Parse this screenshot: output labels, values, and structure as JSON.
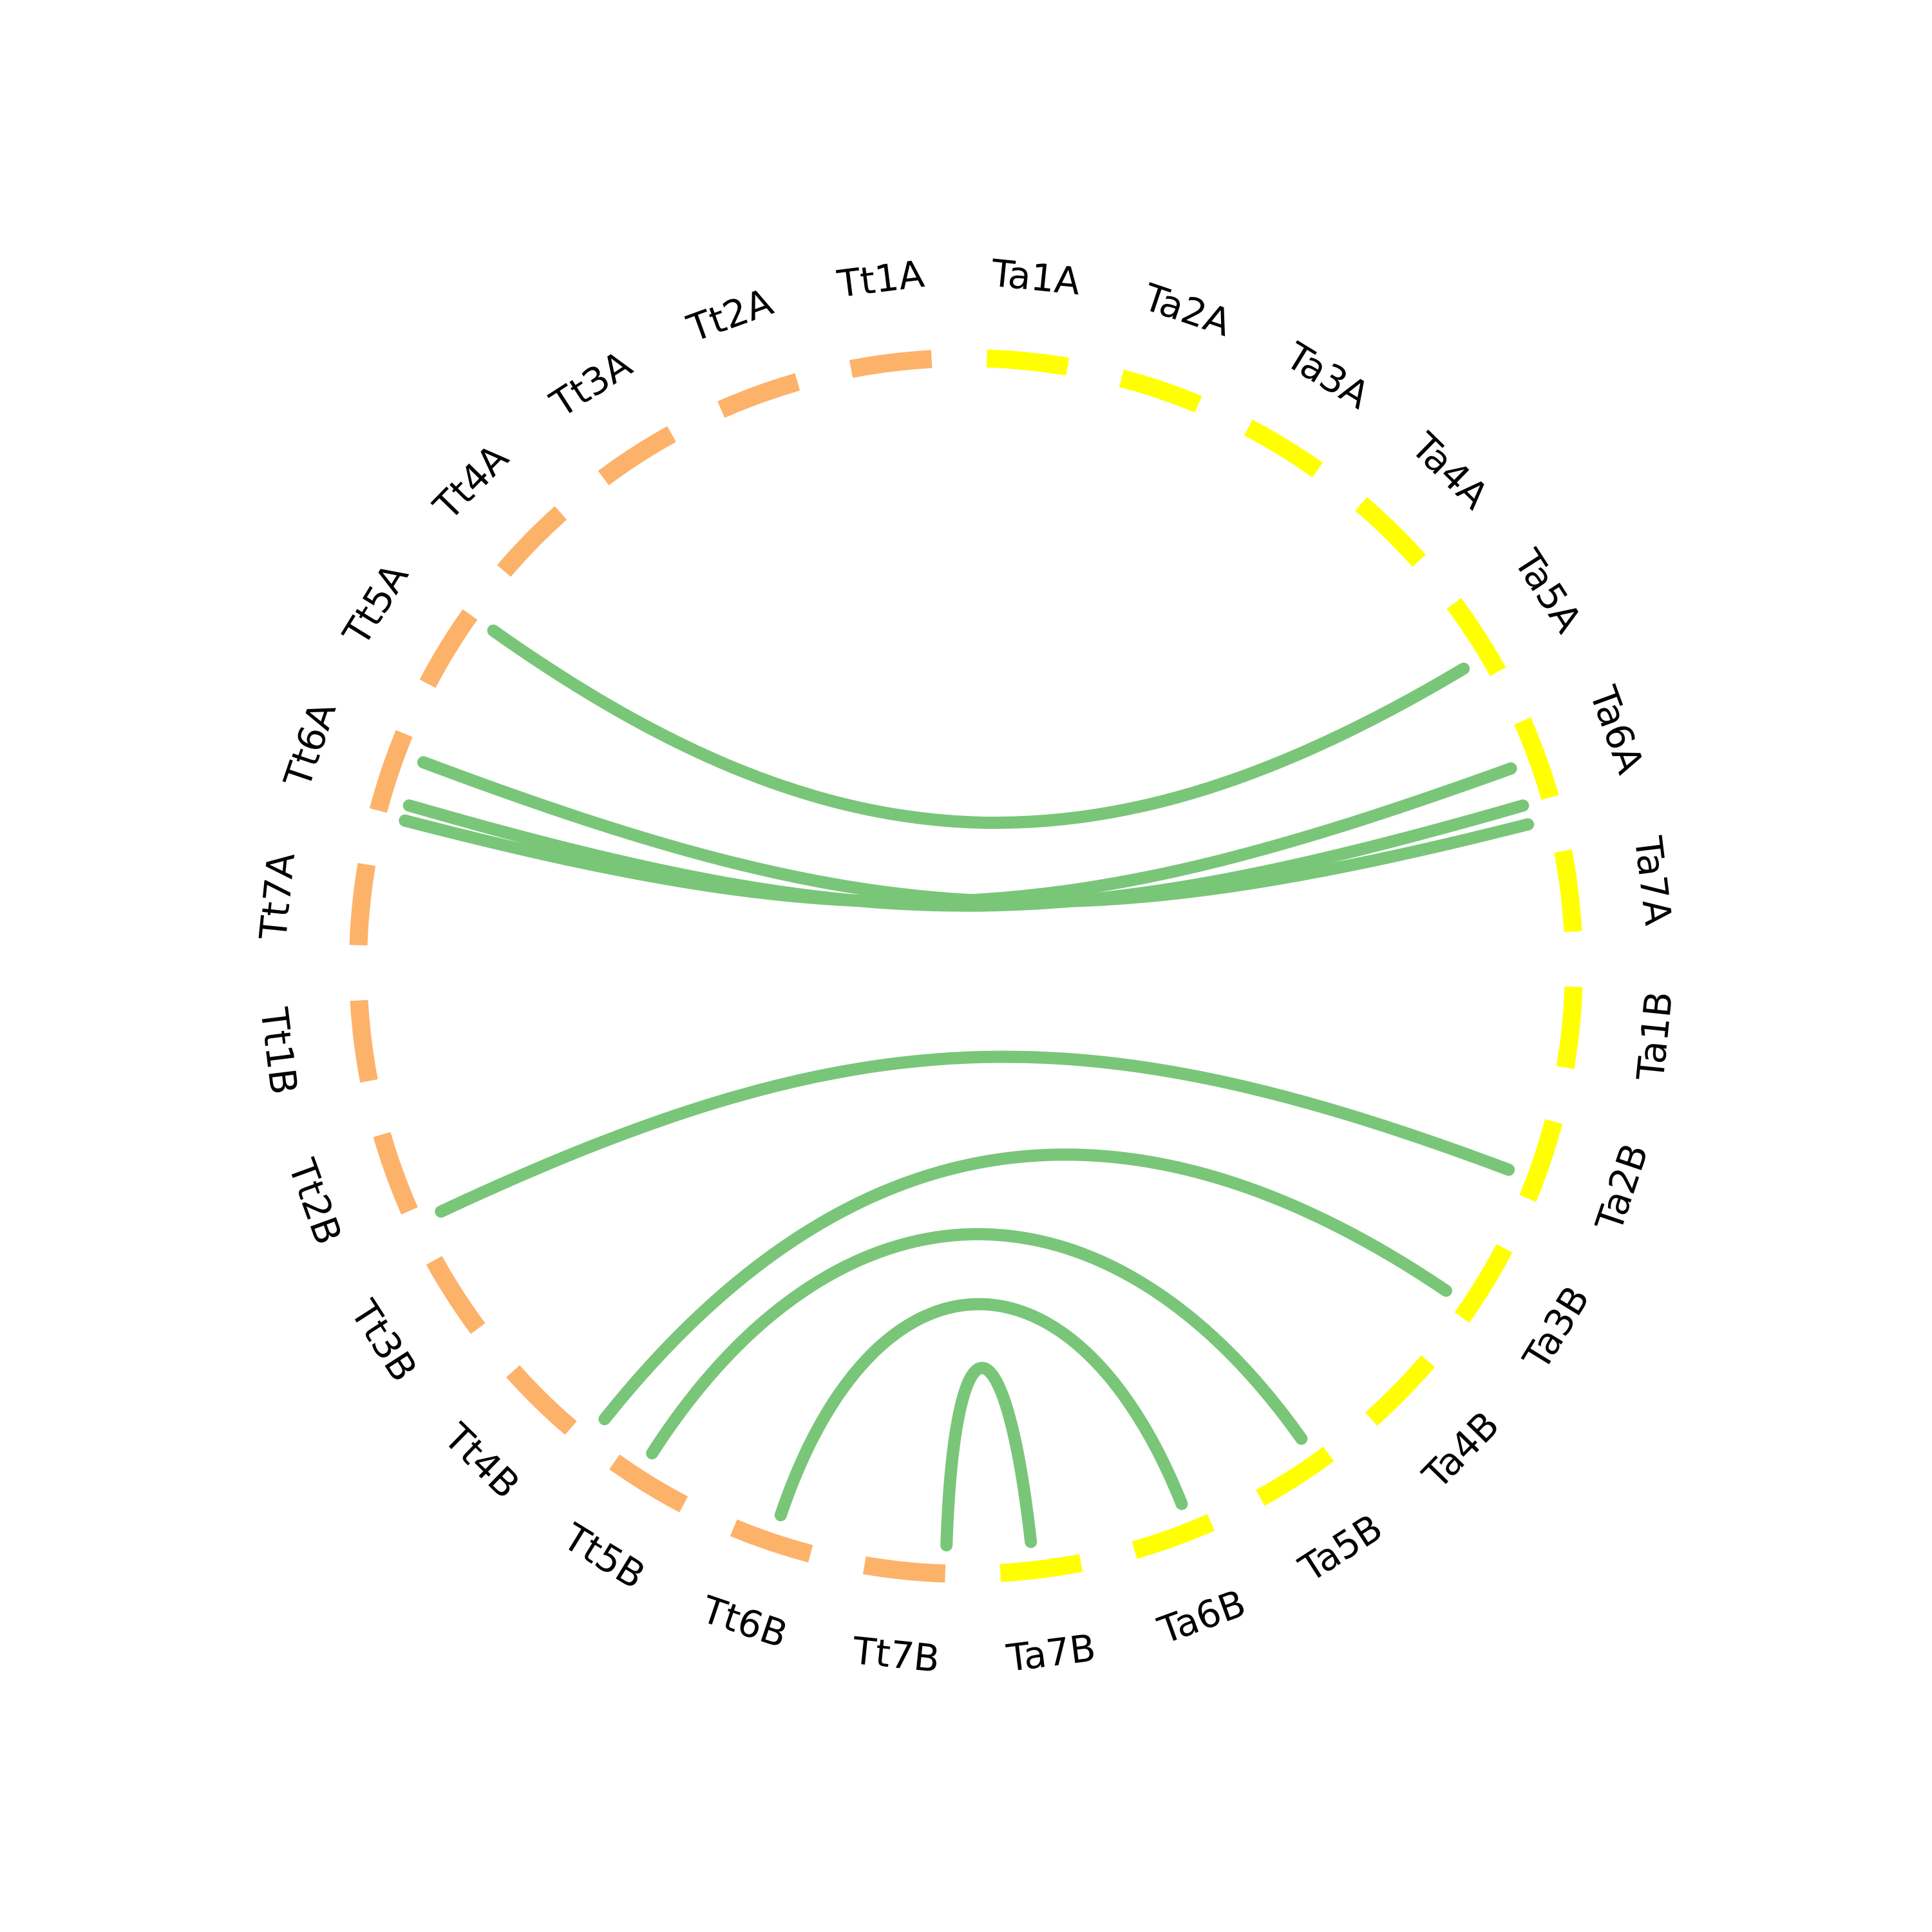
{
  "colors": {
    "group_tt": "#fdb26a",
    "group_ta": "#ffff00",
    "link": "#79c679"
  },
  "segments": [
    {
      "label": "Ta1A",
      "group": "ta"
    },
    {
      "label": "Ta2A",
      "group": "ta"
    },
    {
      "label": "Ta3A",
      "group": "ta"
    },
    {
      "label": "Ta4A",
      "group": "ta"
    },
    {
      "label": "Ta5A",
      "group": "ta"
    },
    {
      "label": "Ta6A",
      "group": "ta"
    },
    {
      "label": "Ta7A",
      "group": "ta"
    },
    {
      "label": "Ta1B",
      "group": "ta"
    },
    {
      "label": "Ta2B",
      "group": "ta"
    },
    {
      "label": "Ta3B",
      "group": "ta"
    },
    {
      "label": "Ta4B",
      "group": "ta"
    },
    {
      "label": "Ta5B",
      "group": "ta"
    },
    {
      "label": "Ta6B",
      "group": "ta"
    },
    {
      "label": "Ta7B",
      "group": "ta"
    },
    {
      "label": "Tt7B",
      "group": "tt"
    },
    {
      "label": "Tt6B",
      "group": "tt"
    },
    {
      "label": "Tt5B",
      "group": "tt"
    },
    {
      "label": "Tt4B",
      "group": "tt"
    },
    {
      "label": "Tt3B",
      "group": "tt"
    },
    {
      "label": "Tt2B",
      "group": "tt"
    },
    {
      "label": "Tt1B",
      "group": "tt"
    },
    {
      "label": "Tt7A",
      "group": "tt"
    },
    {
      "label": "Tt6A",
      "group": "tt"
    },
    {
      "label": "Tt5A",
      "group": "tt"
    },
    {
      "label": "Tt4A",
      "group": "tt"
    },
    {
      "label": "Tt3A",
      "group": "tt"
    },
    {
      "label": "Tt2A",
      "group": "tt"
    },
    {
      "label": "Tt1A",
      "group": "tt"
    }
  ],
  "links": [
    {
      "from": "Tt5A",
      "from_pos": 0.8,
      "to": "Ta5A",
      "to_pos": 0.65
    },
    {
      "from": "Tt6A",
      "from_pos": 0.18,
      "to": "Ta6A",
      "to_pos": 0.5
    },
    {
      "from": "Tt6A",
      "from_pos": 0.3,
      "to": "Ta6A",
      "to_pos": 0.8
    },
    {
      "from": "Tt6A",
      "from_pos": 0.65,
      "to": "Ta6A",
      "to_pos": 0.95
    },
    {
      "from": "Tt2B",
      "from_pos": 0.1,
      "to": "Ta2B",
      "to_pos": 0.65
    },
    {
      "from": "Tt4B",
      "from_pos": 0.05,
      "to": "Ta3B",
      "to_pos": 0.7
    },
    {
      "from": "Tt5B",
      "from_pos": 0.6,
      "to": "Ta5B",
      "to_pos": 0.3
    },
    {
      "from": "Tt6B",
      "from_pos": 0.5,
      "to": "Ta6B",
      "to_pos": 0.35
    },
    {
      "from": "Tt7B",
      "from_pos": 0.2,
      "to": "Ta7B",
      "to_pos": 0.55
    }
  ]
}
